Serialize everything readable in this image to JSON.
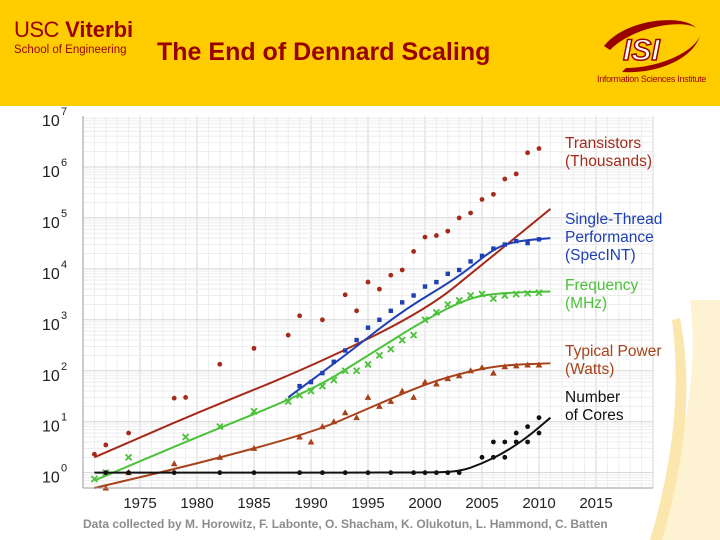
{
  "header": {
    "logo_usc": "USC",
    "logo_viterbi": "Viterbi",
    "logo_school": "School of Engineering",
    "title": "The End of Dennard Scaling",
    "isi_mark": "ISI",
    "isi_sub": "Information Sciences Institute"
  },
  "colors": {
    "header_bg": "#FFCC00",
    "brand_red": "#990000",
    "transistors": "#A52A1A",
    "single_thread": "#1F3FB5",
    "frequency": "#4CC23A",
    "power": "#A8421A",
    "cores": "#111111"
  },
  "chart_data": {
    "type": "scatter",
    "title": "",
    "xlabel": "",
    "ylabel": "",
    "y_scale": "log",
    "xlim": [
      1970,
      2020
    ],
    "ylim": [
      0.5,
      10000000
    ],
    "grid": true,
    "x_ticks": [
      "1975",
      "1980",
      "1985",
      "1990",
      "1995",
      "2000",
      "2005",
      "2010",
      "2015"
    ],
    "y_ticks": [
      {
        "base": "10",
        "exp": "0"
      },
      {
        "base": "10",
        "exp": "1"
      },
      {
        "base": "10",
        "exp": "2"
      },
      {
        "base": "10",
        "exp": "3"
      },
      {
        "base": "10",
        "exp": "4"
      },
      {
        "base": "10",
        "exp": "5"
      },
      {
        "base": "10",
        "exp": "6"
      },
      {
        "base": "10",
        "exp": "7"
      }
    ],
    "credit": "Data collected by M. Horowitz, F. Labonte, O. Shacham, K. Olukotun, L. Hammond, C. Batten",
    "series": [
      {
        "key": "transistors",
        "label_lines": [
          "Transistors",
          "(Thousands)"
        ],
        "marker": "circle",
        "trend": [
          [
            1971,
            2
          ],
          [
            1980,
            15
          ],
          [
            1990,
            120
          ],
          [
            2000,
            1500
          ],
          [
            2005,
            12000
          ],
          [
            2011,
            150000
          ]
        ],
        "points": [
          [
            1971,
            2.3
          ],
          [
            1972,
            3.5
          ],
          [
            1974,
            6
          ],
          [
            1978,
            29
          ],
          [
            1979,
            30
          ],
          [
            1982,
            134
          ],
          [
            1985,
            275
          ],
          [
            1988,
            500
          ],
          [
            1989,
            1200
          ],
          [
            1991,
            1000
          ],
          [
            1993,
            3100
          ],
          [
            1994,
            1500
          ],
          [
            1995,
            5500
          ],
          [
            1996,
            4000
          ],
          [
            1997,
            7500
          ],
          [
            1998,
            9500
          ],
          [
            1999,
            22000
          ],
          [
            2000,
            42000
          ],
          [
            2001,
            45000
          ],
          [
            2002,
            55000
          ],
          [
            2003,
            100000
          ],
          [
            2004,
            125000
          ],
          [
            2005,
            230000
          ],
          [
            2006,
            290000
          ],
          [
            2007,
            580000
          ],
          [
            2008,
            730000
          ],
          [
            2009,
            1900000
          ],
          [
            2010,
            2300000
          ]
        ]
      },
      {
        "key": "single_thread",
        "label_lines": [
          "Single-Thread",
          "Performance",
          "(SpecINT)"
        ],
        "marker": "square",
        "trend": [
          [
            1988,
            30
          ],
          [
            1993,
            200
          ],
          [
            1998,
            1500
          ],
          [
            2003,
            7000
          ],
          [
            2006,
            25000
          ],
          [
            2008,
            35000
          ],
          [
            2011,
            40000
          ]
        ],
        "points": [
          [
            1989,
            50
          ],
          [
            1990,
            60
          ],
          [
            1991,
            90
          ],
          [
            1992,
            150
          ],
          [
            1993,
            250
          ],
          [
            1994,
            400
          ],
          [
            1995,
            700
          ],
          [
            1996,
            1000
          ],
          [
            1997,
            1500
          ],
          [
            1998,
            2200
          ],
          [
            1999,
            3000
          ],
          [
            2000,
            4500
          ],
          [
            2001,
            5500
          ],
          [
            2002,
            8000
          ],
          [
            2003,
            9500
          ],
          [
            2004,
            14000
          ],
          [
            2005,
            18000
          ],
          [
            2006,
            25000
          ],
          [
            2007,
            30000
          ],
          [
            2008,
            35000
          ],
          [
            2009,
            32000
          ],
          [
            2010,
            38000
          ]
        ]
      },
      {
        "key": "frequency",
        "label_lines": [
          "Frequency",
          "(MHz)"
        ],
        "marker": "cross",
        "trend": [
          [
            1971,
            0.7
          ],
          [
            1980,
            5
          ],
          [
            1990,
            40
          ],
          [
            1995,
            200
          ],
          [
            2000,
            1000
          ],
          [
            2004,
            2800
          ],
          [
            2007,
            3400
          ],
          [
            2011,
            3600
          ]
        ],
        "points": [
          [
            1971,
            0.75
          ],
          [
            1972,
            1
          ],
          [
            1974,
            2
          ],
          [
            1979,
            5
          ],
          [
            1982,
            8
          ],
          [
            1985,
            16
          ],
          [
            1988,
            25
          ],
          [
            1989,
            33
          ],
          [
            1990,
            40
          ],
          [
            1991,
            50
          ],
          [
            1992,
            66
          ],
          [
            1993,
            100
          ],
          [
            1994,
            100
          ],
          [
            1995,
            133
          ],
          [
            1996,
            200
          ],
          [
            1997,
            266
          ],
          [
            1998,
            400
          ],
          [
            1999,
            500
          ],
          [
            2000,
            1000
          ],
          [
            2001,
            1400
          ],
          [
            2002,
            2000
          ],
          [
            2003,
            2400
          ],
          [
            2004,
            3000
          ],
          [
            2005,
            3200
          ],
          [
            2006,
            2600
          ],
          [
            2007,
            3000
          ],
          [
            2008,
            3200
          ],
          [
            2009,
            3300
          ],
          [
            2010,
            3400
          ]
        ]
      },
      {
        "key": "power",
        "label_lines": [
          "Typical Power",
          "(Watts)"
        ],
        "marker": "triangle",
        "trend": [
          [
            1971,
            0.5
          ],
          [
            1980,
            1.5
          ],
          [
            1990,
            6
          ],
          [
            1995,
            18
          ],
          [
            2000,
            55
          ],
          [
            2004,
            100
          ],
          [
            2007,
            130
          ],
          [
            2011,
            140
          ]
        ],
        "points": [
          [
            1972,
            0.5
          ],
          [
            1974,
            1
          ],
          [
            1978,
            1.5
          ],
          [
            1982,
            2
          ],
          [
            1985,
            3
          ],
          [
            1989,
            5
          ],
          [
            1990,
            4
          ],
          [
            1991,
            8
          ],
          [
            1992,
            10
          ],
          [
            1993,
            15
          ],
          [
            1994,
            12
          ],
          [
            1995,
            30
          ],
          [
            1996,
            20
          ],
          [
            1997,
            25
          ],
          [
            1998,
            40
          ],
          [
            1999,
            30
          ],
          [
            2000,
            60
          ],
          [
            2001,
            55
          ],
          [
            2002,
            70
          ],
          [
            2003,
            80
          ],
          [
            2004,
            100
          ],
          [
            2005,
            115
          ],
          [
            2006,
            90
          ],
          [
            2007,
            120
          ],
          [
            2008,
            125
          ],
          [
            2009,
            130
          ],
          [
            2010,
            130
          ]
        ]
      },
      {
        "key": "cores",
        "label_lines": [
          "Number",
          "of Cores"
        ],
        "marker": "circle",
        "trend": [
          [
            1971,
            1
          ],
          [
            2000,
            1
          ],
          [
            2003,
            1.05
          ],
          [
            2005,
            1.5
          ],
          [
            2007,
            2.5
          ],
          [
            2009,
            5
          ],
          [
            2011,
            12
          ]
        ],
        "points": [
          [
            1972,
            1
          ],
          [
            1974,
            1
          ],
          [
            1978,
            1
          ],
          [
            1982,
            1
          ],
          [
            1985,
            1
          ],
          [
            1989,
            1
          ],
          [
            1991,
            1
          ],
          [
            1993,
            1
          ],
          [
            1995,
            1
          ],
          [
            1997,
            1
          ],
          [
            1999,
            1
          ],
          [
            2000,
            1
          ],
          [
            2001,
            1
          ],
          [
            2002,
            1
          ],
          [
            2003,
            1
          ],
          [
            2005,
            2
          ],
          [
            2006,
            2
          ],
          [
            2006,
            4
          ],
          [
            2007,
            2
          ],
          [
            2007,
            4
          ],
          [
            2008,
            4
          ],
          [
            2008,
            6
          ],
          [
            2009,
            4
          ],
          [
            2009,
            8
          ],
          [
            2010,
            6
          ],
          [
            2010,
            12
          ]
        ]
      }
    ]
  }
}
